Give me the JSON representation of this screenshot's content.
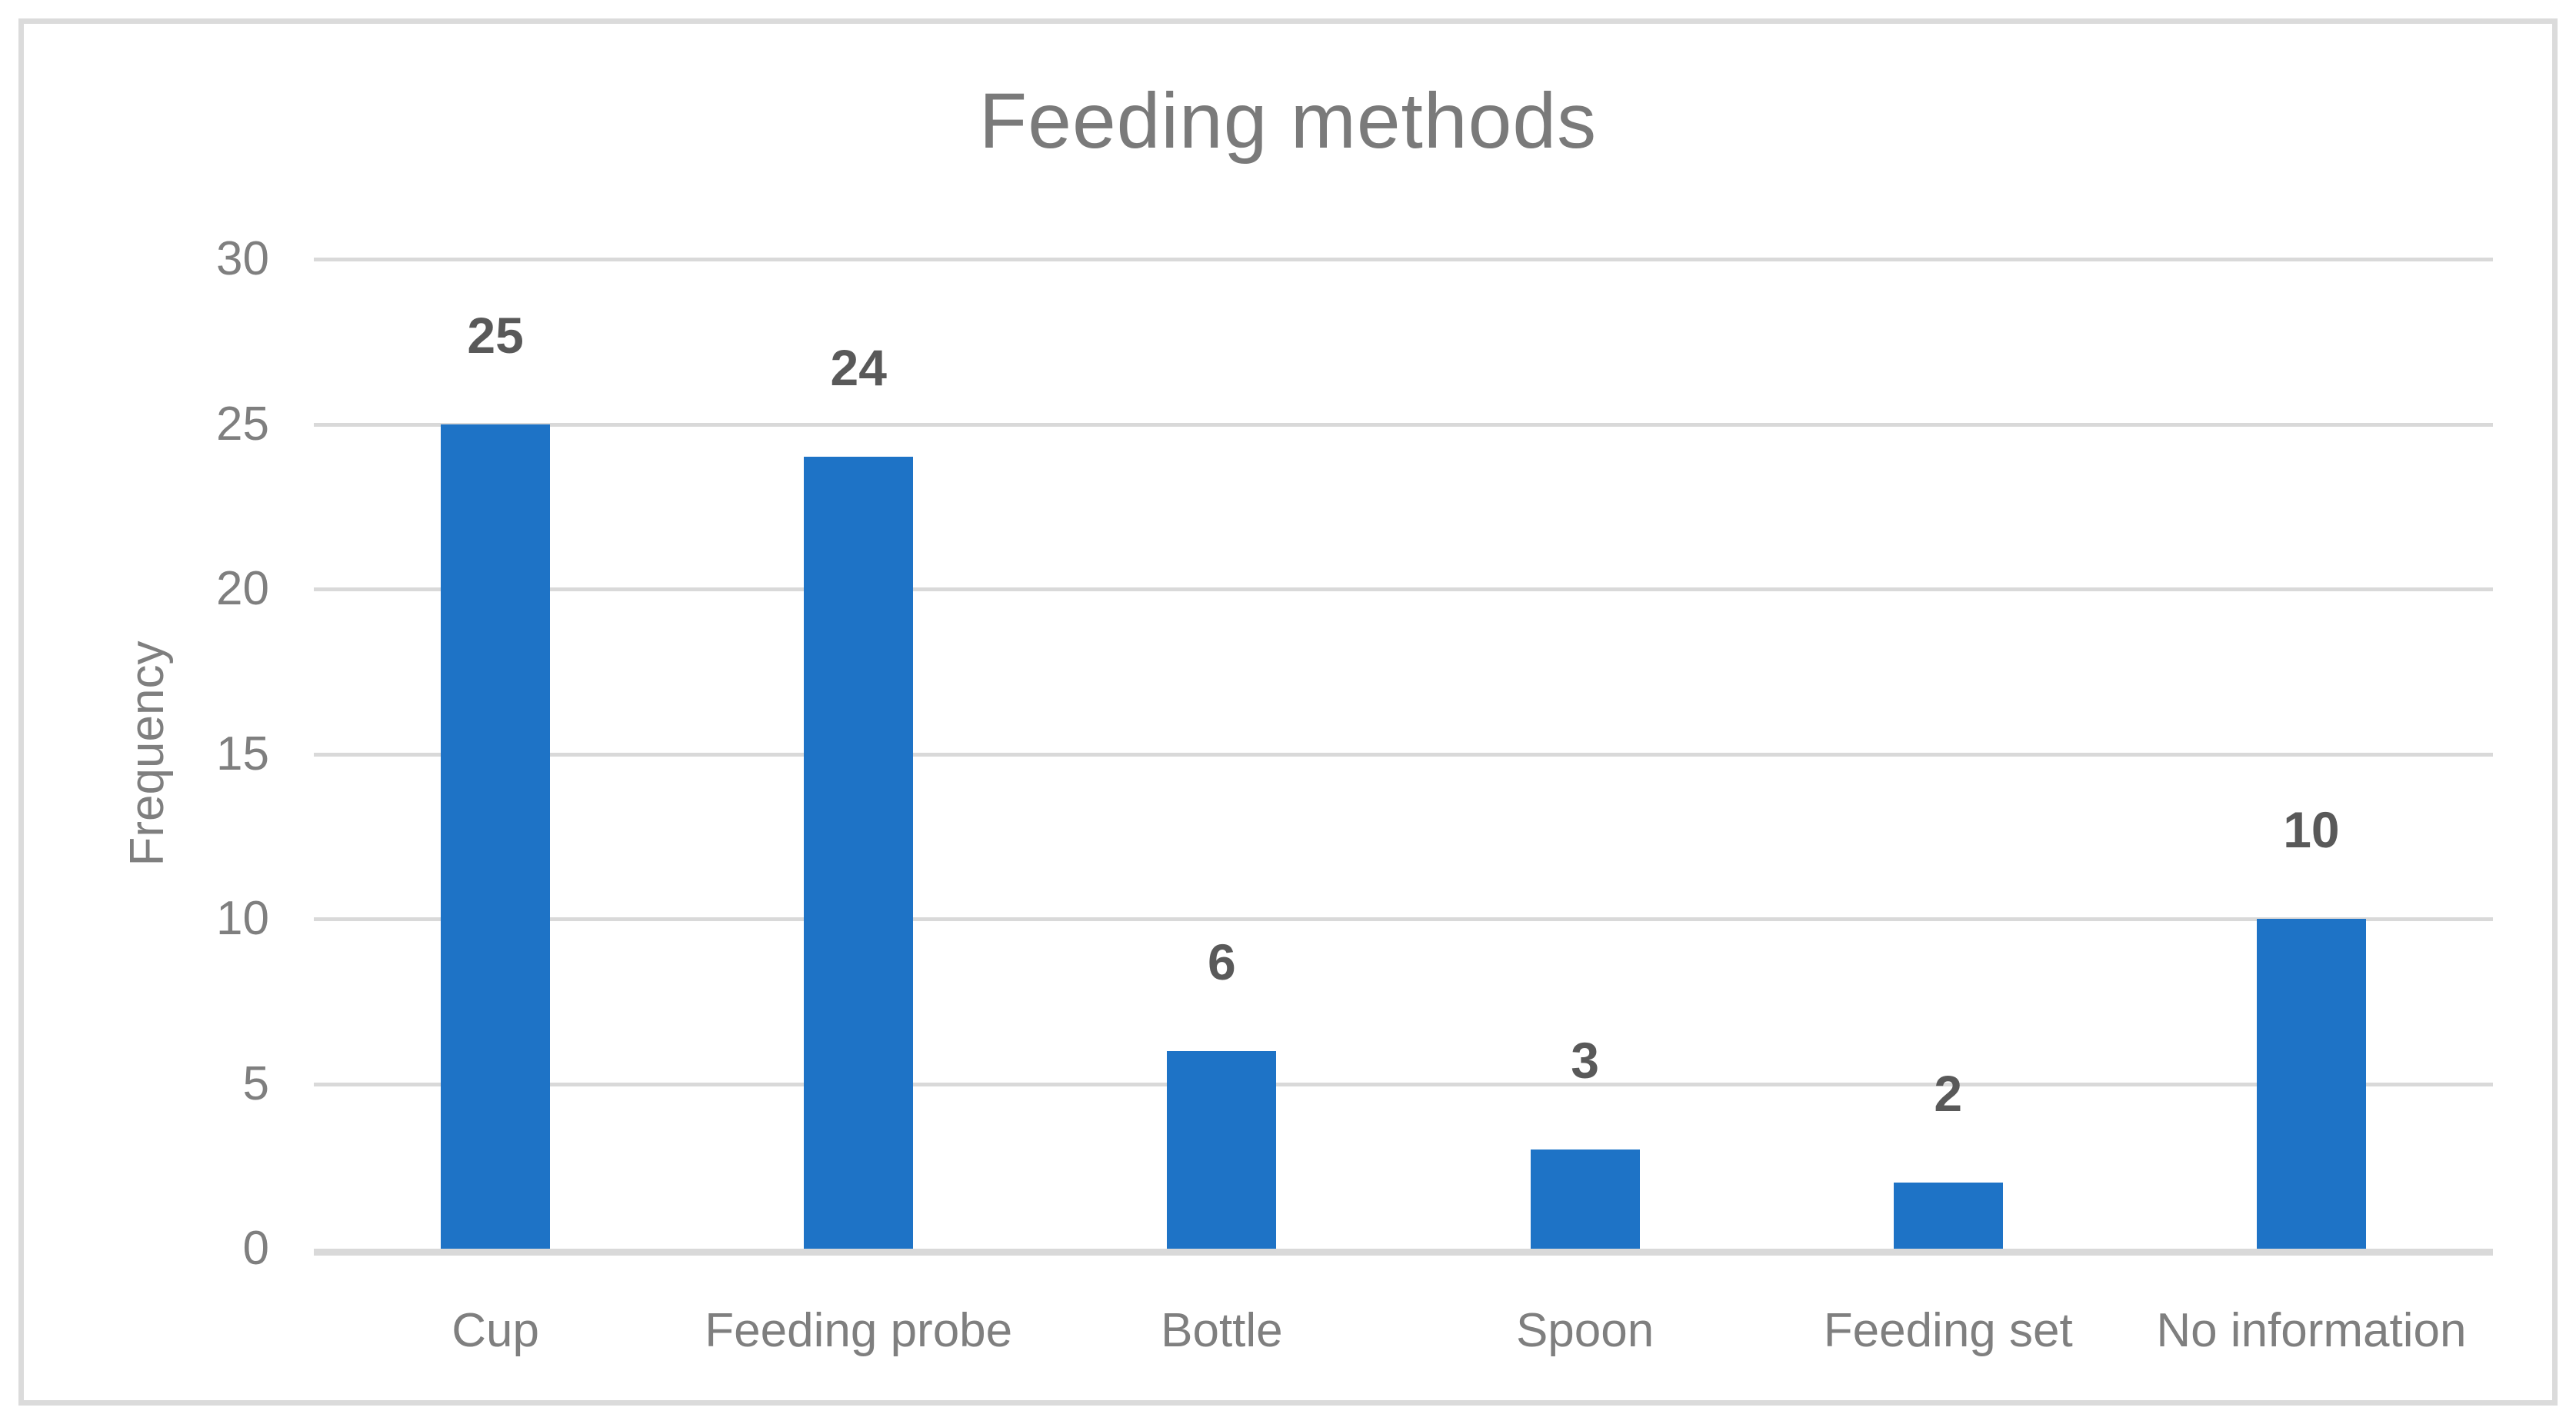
{
  "chart_data": {
    "type": "bar",
    "title": "Feeding methods",
    "categories": [
      "Cup",
      "Feeding probe",
      "Bottle",
      "Spoon",
      "Feeding set",
      "No information"
    ],
    "values": [
      25,
      24,
      6,
      3,
      2,
      10
    ],
    "xlabel": "",
    "ylabel": "Frequency",
    "ylim": [
      0,
      30
    ],
    "yticks": [
      0,
      5,
      10,
      15,
      20,
      25,
      30
    ],
    "grid": "horizontal",
    "legend": "none",
    "data_labels_shown": true
  },
  "colors": {
    "bar": "#1E73C6",
    "gridline": "#D9D9D9",
    "axis_line": "#D9D9D9",
    "frame_border": "#DBDBDB",
    "title_text": "#7A7A7A",
    "axis_text": "#7F7F7F",
    "data_label_text": "#595959",
    "background": "#FFFFFF"
  }
}
